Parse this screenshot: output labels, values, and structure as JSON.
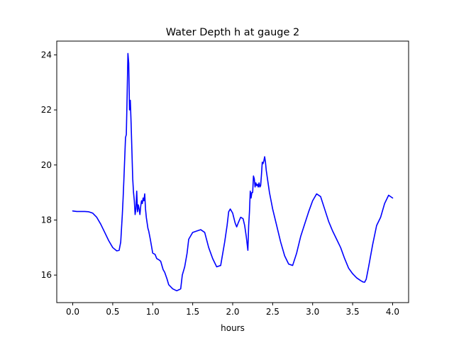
{
  "chart_data": {
    "type": "line",
    "title": "Water Depth h at gauge 2",
    "xlabel": "hours",
    "ylabel": "",
    "xlim": [
      -0.2,
      4.2
    ],
    "ylim": [
      15.0,
      24.5
    ],
    "x_ticks": [
      0.0,
      0.5,
      1.0,
      1.5,
      2.0,
      2.5,
      3.0,
      3.5,
      4.0
    ],
    "x_tick_labels": [
      "0.0",
      "0.5",
      "1.0",
      "1.5",
      "2.0",
      "2.5",
      "3.0",
      "3.5",
      "4.0"
    ],
    "y_ticks": [
      16,
      18,
      20,
      22,
      24
    ],
    "y_tick_labels": [
      "16",
      "18",
      "20",
      "22",
      "24"
    ],
    "grid": false,
    "series": [
      {
        "color": "#0000ff",
        "x": [
          0.0,
          0.05,
          0.1,
          0.15,
          0.2,
          0.25,
          0.3,
          0.35,
          0.4,
          0.45,
          0.5,
          0.55,
          0.58,
          0.6,
          0.62,
          0.63,
          0.64,
          0.66,
          0.67,
          0.68,
          0.69,
          0.7,
          0.71,
          0.72,
          0.73,
          0.74,
          0.75,
          0.76,
          0.77,
          0.78,
          0.79,
          0.8,
          0.81,
          0.82,
          0.83,
          0.84,
          0.85,
          0.86,
          0.87,
          0.88,
          0.89,
          0.9,
          0.91,
          0.92,
          0.93,
          0.94,
          0.95,
          0.97,
          1.0,
          1.03,
          1.05,
          1.08,
          1.1,
          1.13,
          1.15,
          1.18,
          1.2,
          1.25,
          1.3,
          1.33,
          1.35,
          1.37,
          1.4,
          1.43,
          1.45,
          1.47,
          1.5,
          1.55,
          1.6,
          1.65,
          1.7,
          1.75,
          1.8,
          1.85,
          1.9,
          1.93,
          1.95,
          1.97,
          2.0,
          2.03,
          2.05,
          2.07,
          2.1,
          2.13,
          2.15,
          2.17,
          2.19,
          2.2,
          2.21,
          2.22,
          2.23,
          2.24,
          2.25,
          2.26,
          2.27,
          2.28,
          2.29,
          2.3,
          2.31,
          2.32,
          2.33,
          2.34,
          2.35,
          2.36,
          2.37,
          2.38,
          2.39,
          2.4,
          2.41,
          2.42,
          2.44,
          2.46,
          2.48,
          2.5,
          2.55,
          2.6,
          2.65,
          2.7,
          2.75,
          2.8,
          2.85,
          2.9,
          2.95,
          3.0,
          3.05,
          3.1,
          3.15,
          3.2,
          3.25,
          3.3,
          3.35,
          3.4,
          3.45,
          3.5,
          3.55,
          3.6,
          3.63,
          3.65,
          3.67,
          3.7,
          3.75,
          3.8,
          3.85,
          3.9,
          3.95,
          4.0
        ],
        "y": [
          18.33,
          18.31,
          18.31,
          18.31,
          18.3,
          18.25,
          18.1,
          17.85,
          17.55,
          17.25,
          17.0,
          16.88,
          16.9,
          17.2,
          18.2,
          18.8,
          19.5,
          21.0,
          21.1,
          22.5,
          24.05,
          23.7,
          22.0,
          22.35,
          21.5,
          20.5,
          19.5,
          19.0,
          18.7,
          18.2,
          18.4,
          19.05,
          18.3,
          18.55,
          18.4,
          18.2,
          18.5,
          18.7,
          18.6,
          18.8,
          18.7,
          18.95,
          18.4,
          18.1,
          17.9,
          17.7,
          17.6,
          17.3,
          16.8,
          16.75,
          16.6,
          16.55,
          16.5,
          16.2,
          16.1,
          15.85,
          15.65,
          15.5,
          15.43,
          15.47,
          15.5,
          16.0,
          16.3,
          16.8,
          17.3,
          17.4,
          17.55,
          17.6,
          17.65,
          17.55,
          17.0,
          16.6,
          16.3,
          16.35,
          17.2,
          17.8,
          18.3,
          18.4,
          18.25,
          17.9,
          17.75,
          17.9,
          18.1,
          18.05,
          17.8,
          17.4,
          16.9,
          17.8,
          18.3,
          19.05,
          18.8,
          19.0,
          19.0,
          19.6,
          19.5,
          19.2,
          19.35,
          19.25,
          19.3,
          19.2,
          19.35,
          19.2,
          19.25,
          19.65,
          20.1,
          20.05,
          20.15,
          20.3,
          20.1,
          19.8,
          19.4,
          19.0,
          18.7,
          18.4,
          17.8,
          17.2,
          16.7,
          16.4,
          16.35,
          16.8,
          17.4,
          17.85,
          18.3,
          18.7,
          18.95,
          18.85,
          18.4,
          17.95,
          17.6,
          17.3,
          17.0,
          16.6,
          16.25,
          16.05,
          15.9,
          15.8,
          15.75,
          15.74,
          15.85,
          16.3,
          17.1,
          17.8,
          18.1,
          18.6,
          18.9,
          18.8
        ]
      }
    ]
  }
}
